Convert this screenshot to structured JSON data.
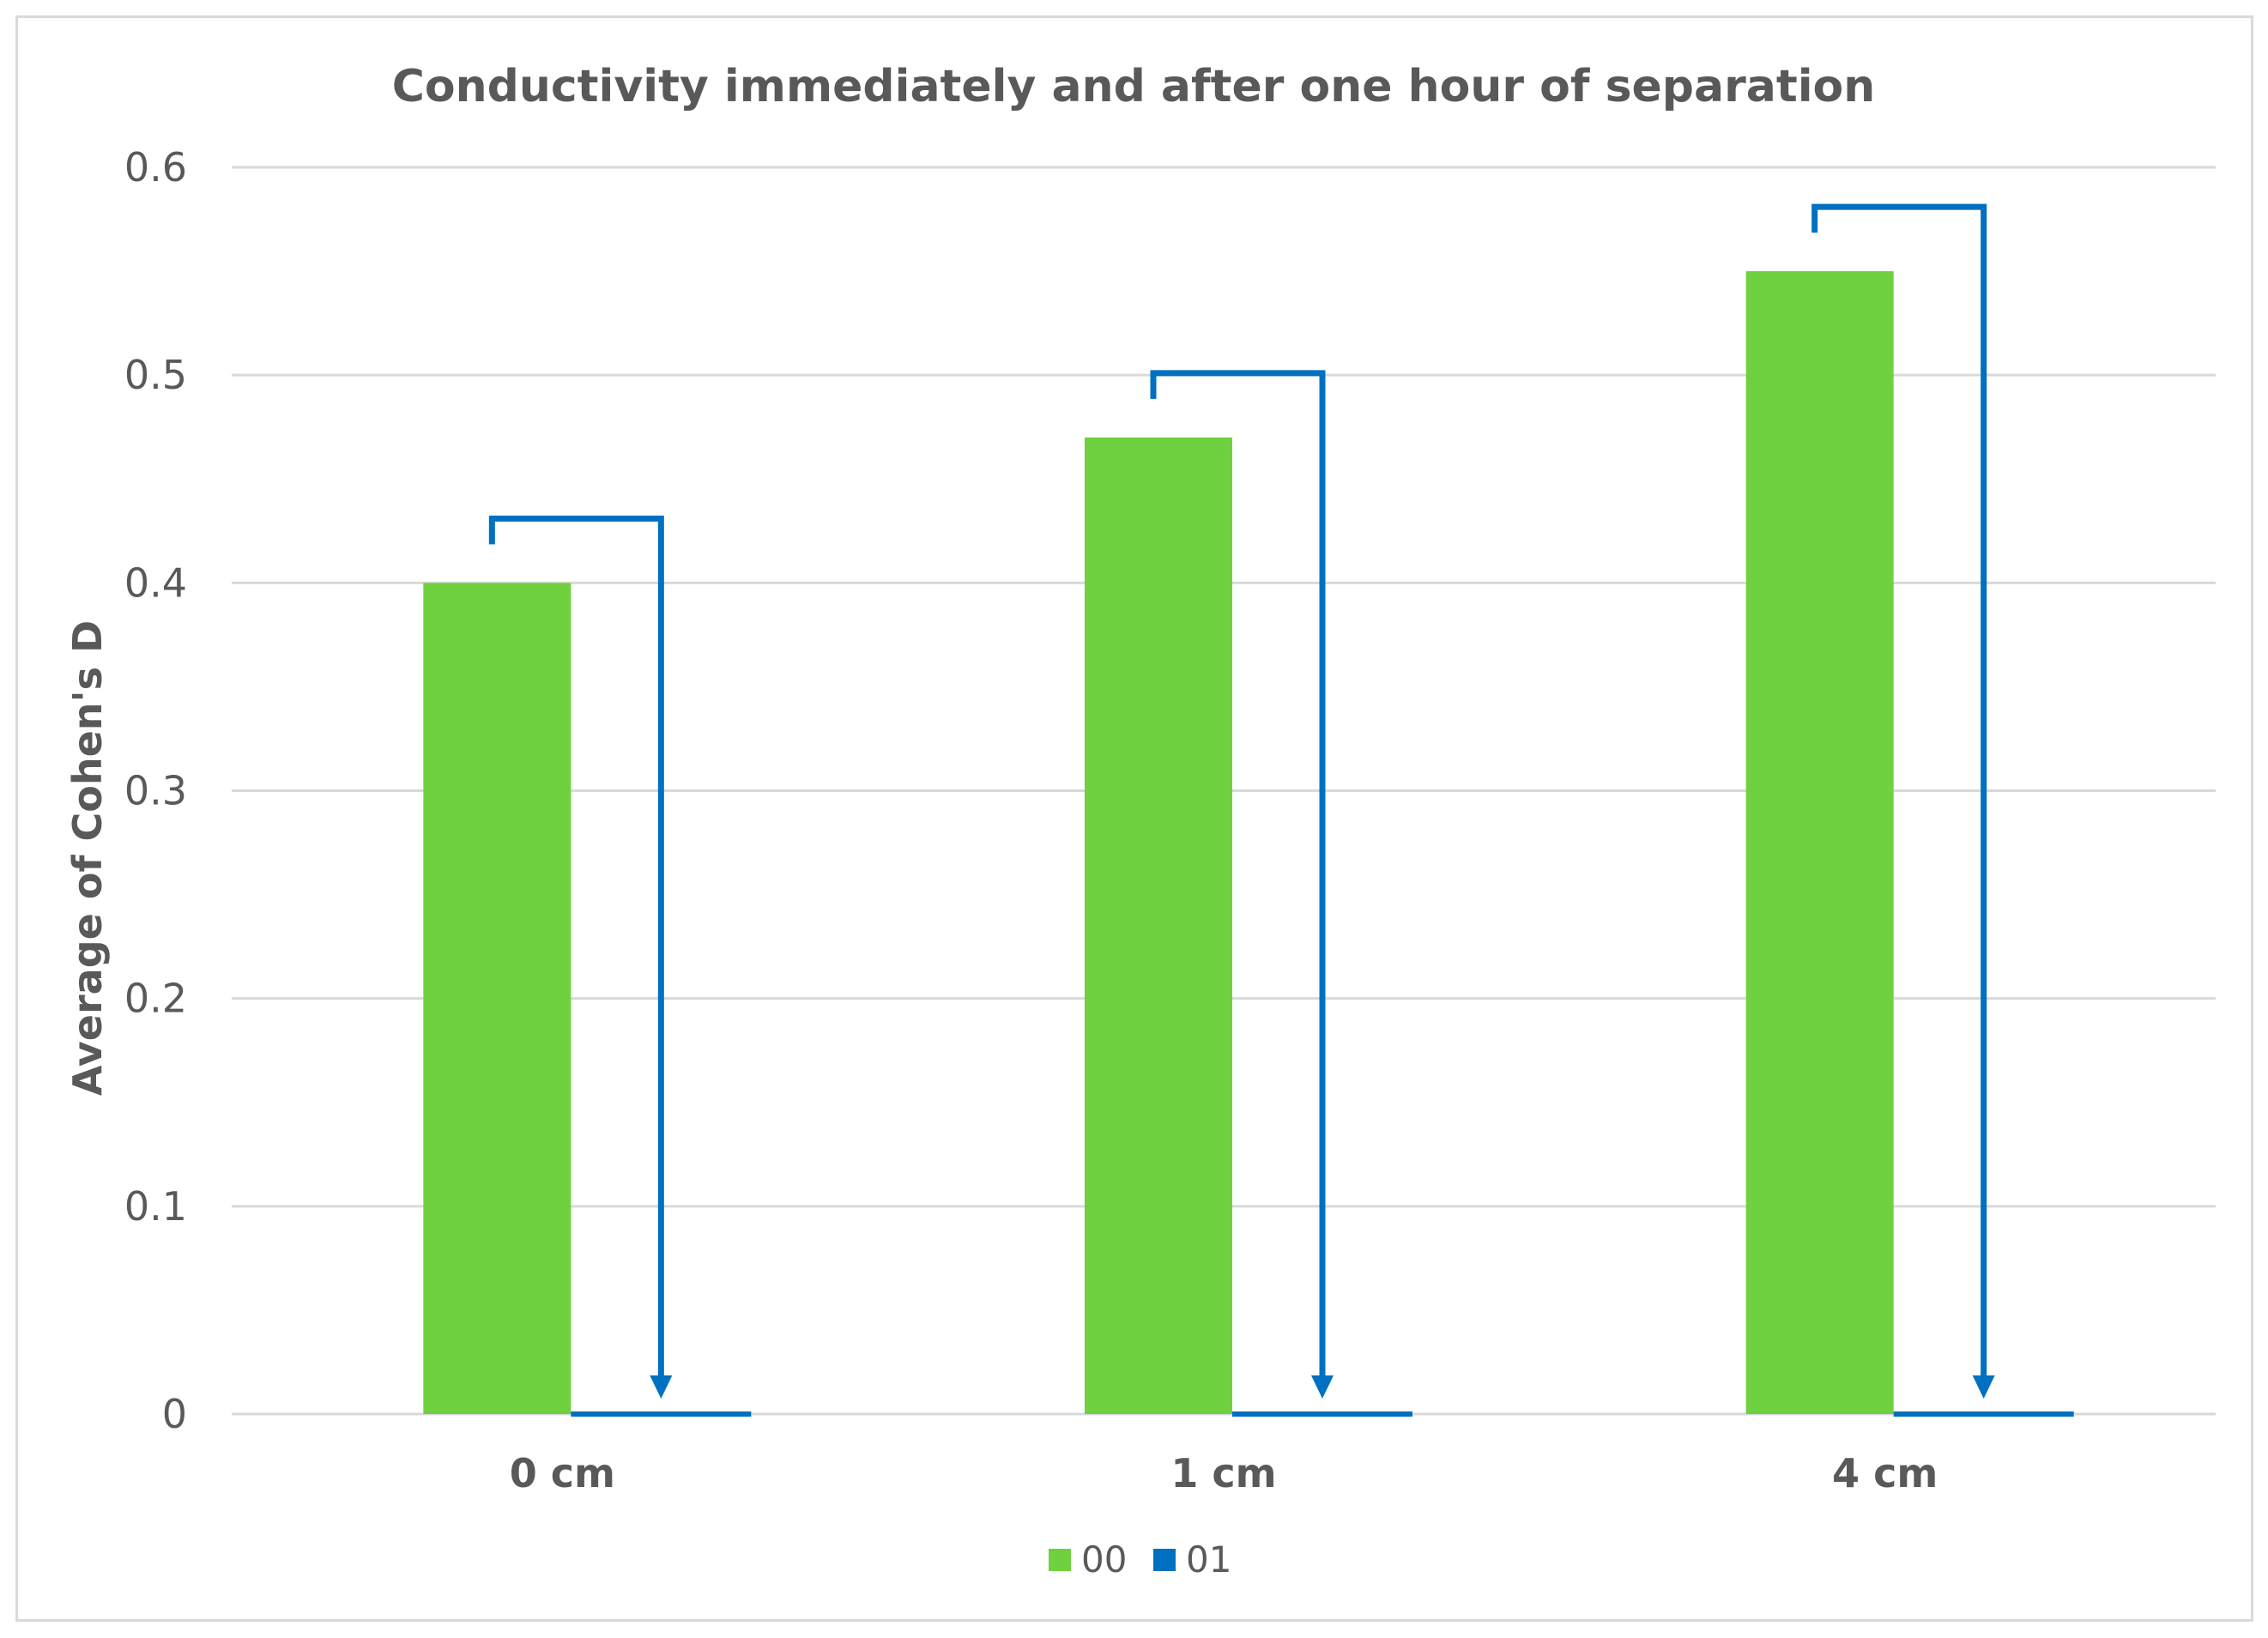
{
  "chart_data": {
    "type": "bar",
    "title": "Conductivity immediately and after one hour of separation",
    "ylabel": "Average of  Cohen's D",
    "xlabel": "",
    "categories": [
      "0 cm",
      "1 cm",
      "4 cm"
    ],
    "series": [
      {
        "name": "00",
        "values": [
          0.4,
          0.47,
          0.55
        ],
        "color": "#6fd13f"
      },
      {
        "name": "01",
        "values": [
          0.0,
          0.002,
          0.002
        ],
        "color": "#0070c0"
      }
    ],
    "ylim": [
      0,
      0.6
    ],
    "yticks": [
      "0",
      "0.1",
      "0.2",
      "0.3",
      "0.4",
      "0.5",
      "0.6"
    ],
    "grid": true,
    "legend": "bottom",
    "annotation_color": "#0070c0"
  }
}
